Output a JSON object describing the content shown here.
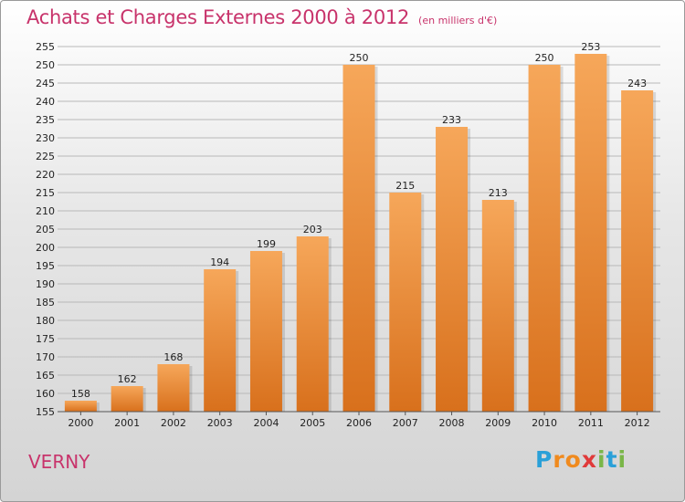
{
  "header": {
    "title": "Achats et Charges Externes 2000 à 2012",
    "unit": "(en milliers d'€)"
  },
  "footer": {
    "commune": "VERNY",
    "logo_letters": [
      "P",
      "r",
      "o",
      "x",
      "i",
      "t",
      "i"
    ],
    "logo_colors": [
      "#2aa0d8",
      "#f08a1e",
      "#f08a1e",
      "#e03a3a",
      "#7ab648",
      "#2aa0d8",
      "#7ab648"
    ]
  },
  "colors": {
    "title": "#c8336b",
    "bar_light": "#f6a75a",
    "bar_dark": "#d8701c",
    "grid": "#b8b8b8"
  },
  "chart_data": {
    "type": "bar",
    "title": "Achats et Charges Externes 2000 à 2012",
    "categories": [
      "2000",
      "2001",
      "2002",
      "2003",
      "2004",
      "2005",
      "2006",
      "2007",
      "2008",
      "2009",
      "2010",
      "2011",
      "2012"
    ],
    "values": [
      158,
      162,
      168,
      194,
      199,
      203,
      250,
      215,
      233,
      213,
      250,
      253,
      243
    ],
    "ylim": [
      155,
      255
    ],
    "yticks": [
      155,
      160,
      165,
      170,
      175,
      180,
      185,
      190,
      195,
      200,
      205,
      210,
      215,
      220,
      225,
      230,
      235,
      240,
      245,
      250,
      255
    ],
    "grid": true
  }
}
